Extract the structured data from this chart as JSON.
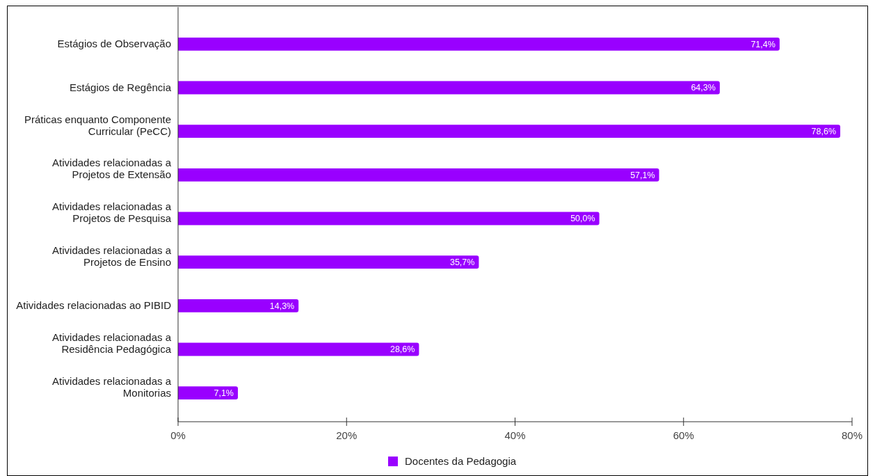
{
  "chart_data": {
    "type": "bar",
    "orientation": "horizontal",
    "categories": [
      "Estágios de Observação",
      "Estágios de Regência",
      "Práticas enquanto Componente Curricular (PeCC)",
      "Atividades relacionadas a Projetos de Extensão",
      "Atividades relacionadas a Projetos de Pesquisa",
      "Atividades relacionadas a Projetos de Ensino",
      "Atividades relacionadas ao PIBID",
      "Atividades relacionadas a Residência Pedagógica",
      "Atividades relacionadas a Monitorias"
    ],
    "series": [
      {
        "name": "Docentes da Pedagogia",
        "color": "#9900ff",
        "values": [
          71.4,
          64.3,
          78.6,
          57.1,
          50.0,
          35.7,
          14.3,
          28.6,
          7.1
        ],
        "value_labels": [
          "71,4%",
          "64,3%",
          "78,6%",
          "57,1%",
          "50,0%",
          "35,7%",
          "14,3%",
          "28,6%",
          "7,1%"
        ]
      }
    ],
    "xlim": [
      0,
      80
    ],
    "xticks": [
      {
        "value": 0,
        "label": "0%"
      },
      {
        "value": 20,
        "label": "20%"
      },
      {
        "value": 40,
        "label": "40%"
      },
      {
        "value": 60,
        "label": "60%"
      },
      {
        "value": 80,
        "label": "80%"
      }
    ],
    "grid": false,
    "legend": "bottom"
  }
}
